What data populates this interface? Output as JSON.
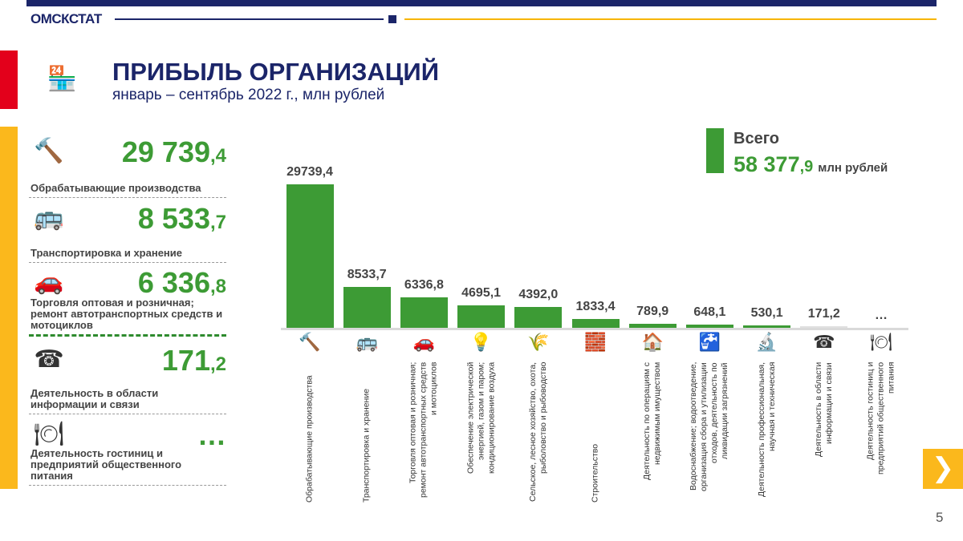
{
  "header": {
    "brand": "ОМСКСТАТ",
    "title": "ПРИБЫЛЬ ОРГАНИЗАЦИЙ",
    "subtitle": "январь – сентябрь 2022 г., млн рублей"
  },
  "left_panel": [
    {
      "value_int": "29 739",
      "value_dec": ",4",
      "label": "Обрабатывающие производства",
      "icon": "hammer-gear-icon"
    },
    {
      "value_int": "8 533",
      "value_dec": ",7",
      "label": "Транспортировка и хранение",
      "icon": "bus-icon"
    },
    {
      "value_int": "6 336",
      "value_dec": ",8",
      "label": "Торговля оптовая и розничная; ремонт автотранспортных средств и мотоциклов",
      "icon": "car-repair-icon"
    },
    {
      "value_int": "171",
      "value_dec": ",2",
      "label": "Деятельность в области информации и связи",
      "icon": "phone-mail-icon"
    },
    {
      "value_int": "…",
      "value_dec": "",
      "label": "Деятельность гостиниц и предприятий общественного питания",
      "icon": "food-icon"
    }
  ],
  "total": {
    "label": "Всего",
    "value_int": "58 377",
    "value_dec": ",9",
    "unit": "млн рублей"
  },
  "chart_data": {
    "type": "bar",
    "title": "Прибыль организаций, январь – сентябрь 2022 г., млн рублей",
    "categories": [
      "Обрабатывающие производства",
      "Транспортировка и хранение",
      "Торговля оптовая и розничная; ремонт автотранспортных средств и мотоциклов",
      "Обеспечение электрической энергией, газом и паром; кондиционирование воздуха",
      "Сельское, лесное хозяйство, охота, рыболовство и рыбоводство",
      "Строительство",
      "Деятельность по операциям с недвижимым имуществом",
      "Водоснабжение; водоотведение, организация сбора и утилизации отходов, деятельность по ликвидации загрязнений",
      "Деятельность профессиональная, научная и техническая",
      "Деятельность в области информации и связи",
      "Деятельность гостиниц и предприятий общественного питания"
    ],
    "values": [
      29739.4,
      8533.7,
      6336.8,
      4695.1,
      4392.0,
      1833.4,
      789.9,
      648.1,
      530.1,
      171.2,
      null
    ],
    "data_labels": [
      "29739,4",
      "8533,7",
      "6336,8",
      "4695,1",
      "4392,0",
      "1833,4",
      "789,9",
      "648,1",
      "530,1",
      "171,2",
      "…"
    ],
    "icons": [
      "hammer-gear-icon",
      "bus-icon",
      "car-repair-icon",
      "energy-icon",
      "agriculture-icon",
      "construction-icon",
      "house-icon",
      "water-pipe-icon",
      "microscope-icon",
      "phone-mail-icon",
      "food-icon"
    ],
    "ylim": [
      0,
      29739.4
    ],
    "color": "#3d9b35"
  },
  "page_number": "5"
}
